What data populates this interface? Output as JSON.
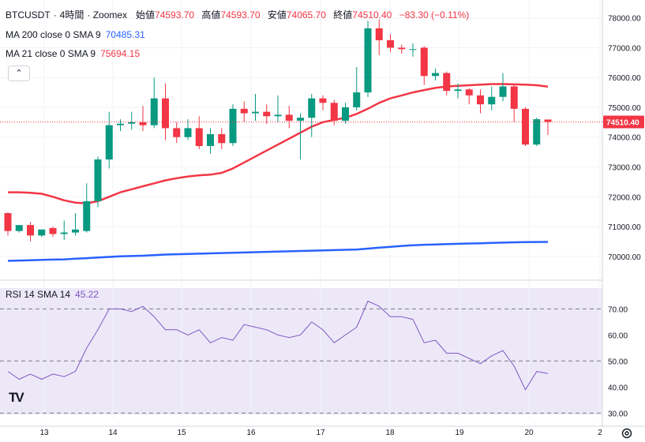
{
  "header": {
    "symbol": "BTCUSDT",
    "dot": "·",
    "interval": "4時間",
    "exchange": "· Zoomex",
    "open_label": "始値",
    "open": "74593.70",
    "high_label": "高値",
    "high": "74593.70",
    "low_label": "安値",
    "low": "74065.70",
    "close_label": "終値",
    "close": "74510.40",
    "change": "−83.30 (−0.11%)"
  },
  "indicators": {
    "ma200": {
      "label": "MA 200 close 0 SMA 9",
      "value": "70485.31"
    },
    "ma21": {
      "label": "MA 21 close 0 SMA 9",
      "value": "75694.15"
    },
    "rsi": {
      "label": "RSI 14 SMA 14",
      "value": "45.22"
    }
  },
  "last_price_tag": "74510.40",
  "collapse_glyph": "⌃",
  "logo_glyph": "TV",
  "colors": {
    "up": "#089981",
    "down": "#f23645",
    "ma200": "#2962ff",
    "ma21": "#f23645",
    "rsi": "#7e57c2"
  },
  "chart_data": {
    "type": "candlestick",
    "price_axis": {
      "ticks": [
        70000,
        71000,
        72000,
        73000,
        74000,
        75000,
        76000,
        77000,
        78000
      ],
      "tick_labels": [
        "70000.00",
        "71000.00",
        "72000.00",
        "73000.00",
        "74000.00",
        "75000.00",
        "76000.00",
        "77000.00",
        "78000.00"
      ],
      "range": [
        69200,
        78600
      ]
    },
    "x_labels": [
      "13",
      "14",
      "15",
      "16",
      "17",
      "18",
      "19",
      "20",
      "2"
    ],
    "candles": [
      {
        "o": 71450,
        "h": 71480,
        "c": 70850,
        "l": 70700
      },
      {
        "o": 70850,
        "h": 71000,
        "c": 71050,
        "l": 70800
      },
      {
        "o": 71050,
        "h": 71150,
        "c": 70700,
        "l": 70500
      },
      {
        "o": 70700,
        "h": 70850,
        "c": 70900,
        "l": 70650
      },
      {
        "o": 70950,
        "h": 71000,
        "c": 70750,
        "l": 70650
      },
      {
        "o": 70750,
        "h": 71200,
        "c": 70800,
        "l": 70550
      },
      {
        "o": 70800,
        "h": 71450,
        "c": 70900,
        "l": 70700
      },
      {
        "o": 70850,
        "h": 72450,
        "c": 71850,
        "l": 70800
      },
      {
        "o": 71850,
        "h": 73350,
        "c": 73250,
        "l": 71650
      },
      {
        "o": 73250,
        "h": 74850,
        "c": 74400,
        "l": 72950
      },
      {
        "o": 74400,
        "h": 74600,
        "c": 74450,
        "l": 74200
      },
      {
        "o": 74450,
        "h": 74850,
        "c": 74500,
        "l": 74250
      },
      {
        "o": 74500,
        "h": 75050,
        "c": 74400,
        "l": 74200
      },
      {
        "o": 74400,
        "h": 76000,
        "c": 75300,
        "l": 74300
      },
      {
        "o": 75300,
        "h": 75800,
        "c": 74300,
        "l": 73900
      },
      {
        "o": 74300,
        "h": 74500,
        "c": 74000,
        "l": 73800
      },
      {
        "o": 74000,
        "h": 74600,
        "c": 74300,
        "l": 73900
      },
      {
        "o": 74300,
        "h": 74700,
        "c": 73700,
        "l": 73600
      },
      {
        "o": 73700,
        "h": 74300,
        "c": 74100,
        "l": 73450
      },
      {
        "o": 74100,
        "h": 74300,
        "c": 73800,
        "l": 73600
      },
      {
        "o": 73800,
        "h": 75100,
        "c": 74950,
        "l": 73700
      },
      {
        "o": 74950,
        "h": 75200,
        "c": 74800,
        "l": 74500
      },
      {
        "o": 74800,
        "h": 75450,
        "c": 74850,
        "l": 74550
      },
      {
        "o": 74850,
        "h": 75100,
        "c": 74700,
        "l": 74450
      },
      {
        "o": 74700,
        "h": 75400,
        "c": 74750,
        "l": 74500
      },
      {
        "o": 74750,
        "h": 75050,
        "c": 74550,
        "l": 74300
      },
      {
        "o": 74550,
        "h": 74800,
        "c": 74650,
        "l": 73250
      },
      {
        "o": 74650,
        "h": 75450,
        "c": 75300,
        "l": 74000
      },
      {
        "o": 75300,
        "h": 75400,
        "c": 75150,
        "l": 74900
      },
      {
        "o": 75150,
        "h": 75250,
        "c": 74550,
        "l": 74400
      },
      {
        "o": 74550,
        "h": 75150,
        "c": 75000,
        "l": 74450
      },
      {
        "o": 75000,
        "h": 76350,
        "c": 75500,
        "l": 74900
      },
      {
        "o": 75500,
        "h": 77900,
        "c": 77650,
        "l": 75350
      },
      {
        "o": 77650,
        "h": 77950,
        "c": 77250,
        "l": 76750
      },
      {
        "o": 77250,
        "h": 77450,
        "c": 77000,
        "l": 76850
      },
      {
        "o": 77000,
        "h": 77100,
        "c": 76950,
        "l": 76800
      },
      {
        "o": 76950,
        "h": 77150,
        "c": 76950,
        "l": 76700
      },
      {
        "o": 77000,
        "h": 77050,
        "c": 76050,
        "l": 75750
      },
      {
        "o": 76050,
        "h": 76300,
        "c": 76150,
        "l": 75900
      },
      {
        "o": 76150,
        "h": 76200,
        "c": 75550,
        "l": 75400
      },
      {
        "o": 75550,
        "h": 75800,
        "c": 75600,
        "l": 75300
      },
      {
        "o": 75600,
        "h": 75650,
        "c": 75400,
        "l": 75100
      },
      {
        "o": 75400,
        "h": 75600,
        "c": 75100,
        "l": 74800
      },
      {
        "o": 75100,
        "h": 75700,
        "c": 75350,
        "l": 74900
      },
      {
        "o": 75350,
        "h": 76150,
        "c": 75700,
        "l": 75200
      },
      {
        "o": 75700,
        "h": 75750,
        "c": 74950,
        "l": 74500
      },
      {
        "o": 74950,
        "h": 75000,
        "c": 73750,
        "l": 73700
      },
      {
        "o": 73750,
        "h": 74650,
        "c": 74600,
        "l": 73700
      },
      {
        "o": 74590,
        "h": 74590,
        "c": 74510,
        "l": 74066
      }
    ],
    "series": [
      {
        "name": "MA 200 close 0 SMA 9",
        "values": [
          69850,
          69860,
          69870,
          69880,
          69890,
          69900,
          69920,
          69940,
          69960,
          69980,
          70000,
          70010,
          70020,
          70040,
          70060,
          70070,
          70080,
          70090,
          70100,
          70110,
          70120,
          70130,
          70140,
          70150,
          70160,
          70170,
          70180,
          70190,
          70200,
          70210,
          70220,
          70230,
          70260,
          70290,
          70320,
          70350,
          70370,
          70390,
          70400,
          70410,
          70420,
          70430,
          70440,
          70450,
          70460,
          70470,
          70478,
          70482,
          70485
        ]
      },
      {
        "name": "MA 21 close 0 SMA 9",
        "values": [
          72150,
          72150,
          72130,
          72100,
          72000,
          71880,
          71800,
          71780,
          71850,
          72000,
          72150,
          72250,
          72350,
          72450,
          72550,
          72620,
          72680,
          72720,
          72740,
          72800,
          72950,
          73150,
          73350,
          73550,
          73750,
          73950,
          74150,
          74350,
          74500,
          74580,
          74650,
          74780,
          74950,
          75150,
          75300,
          75400,
          75500,
          75580,
          75650,
          75700,
          75720,
          75740,
          75760,
          75780,
          75780,
          75770,
          75760,
          75740,
          75694
        ]
      },
      {
        "name": "RSI 14 SMA 14",
        "values": [
          46,
          43,
          45,
          43,
          45,
          44,
          46,
          55,
          62,
          70,
          70,
          69,
          71,
          67,
          62,
          62,
          60,
          62,
          57,
          59,
          58,
          64,
          63,
          62,
          60,
          59,
          60,
          65,
          62,
          57,
          60,
          63,
          73,
          71,
          67,
          67,
          66,
          57,
          58,
          53,
          53,
          51,
          49,
          52,
          54,
          48,
          39,
          46,
          45.22
        ],
        "axis": {
          "ticks": [
            30,
            40,
            50,
            60,
            70
          ],
          "tick_labels": [
            "30.00",
            "40.00",
            "50.00",
            "60.00",
            "70.00"
          ],
          "range": [
            28,
            78
          ],
          "overbought": 70,
          "middle": 50,
          "oversold": 30
        }
      }
    ]
  }
}
